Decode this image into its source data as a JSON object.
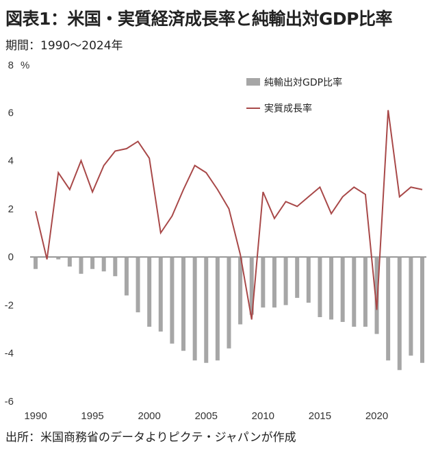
{
  "title": "図表1：米国・実質経済成長率と純輸出対GDP比率",
  "period": "期間：1990～2024年",
  "source": "出所：米国商務省のデータよりピクテ・ジャパンが作成",
  "chart_data": {
    "type": "bar+line",
    "unit_label": "%",
    "x": [
      1990,
      1991,
      1992,
      1993,
      1994,
      1995,
      1996,
      1997,
      1998,
      1999,
      2000,
      2001,
      2002,
      2003,
      2004,
      2005,
      2006,
      2007,
      2008,
      2009,
      2010,
      2011,
      2012,
      2013,
      2014,
      2015,
      2016,
      2017,
      2018,
      2019,
      2020,
      2021,
      2022,
      2023,
      2024
    ],
    "x_tick_labels": [
      "1990",
      "1995",
      "2000",
      "2005",
      "2010",
      "2015",
      "2020"
    ],
    "x_ticks": [
      1990,
      1995,
      2000,
      2005,
      2010,
      2015,
      2020
    ],
    "ylim": [
      -6,
      8
    ],
    "y_ticks": [
      -6,
      -4,
      -2,
      0,
      2,
      4,
      6,
      8
    ],
    "y_tick_labels": [
      "-6",
      "-4",
      "-2",
      "0",
      "2",
      "4",
      "6",
      "8"
    ],
    "grid": false,
    "legend_position": "top-right",
    "series": [
      {
        "name": "純輸出対GDP比率",
        "type": "bar",
        "color": "#a6a6a6",
        "values": [
          -0.5,
          0.0,
          -0.1,
          -0.4,
          -0.7,
          -0.5,
          -0.6,
          -0.8,
          -1.6,
          -2.3,
          -2.9,
          -3.1,
          -3.6,
          -3.9,
          -4.3,
          -4.4,
          -4.3,
          -3.8,
          -2.8,
          -2.4,
          -2.1,
          -2.1,
          -2.0,
          -1.7,
          -1.9,
          -2.5,
          -2.6,
          -2.7,
          -2.9,
          -2.9,
          -3.2,
          -4.3,
          -4.7,
          -4.1,
          -4.4
        ]
      },
      {
        "name": "実質成長率",
        "type": "line",
        "color": "#a84848",
        "values": [
          1.9,
          -0.1,
          3.5,
          2.8,
          4.0,
          2.7,
          3.8,
          4.4,
          4.5,
          4.8,
          4.1,
          1.0,
          1.7,
          2.8,
          3.8,
          3.5,
          2.8,
          2.0,
          0.1,
          -2.6,
          2.7,
          1.6,
          2.3,
          2.1,
          2.5,
          2.9,
          1.8,
          2.5,
          2.9,
          2.6,
          -2.2,
          6.1,
          2.5,
          2.9,
          2.8
        ]
      }
    ]
  }
}
